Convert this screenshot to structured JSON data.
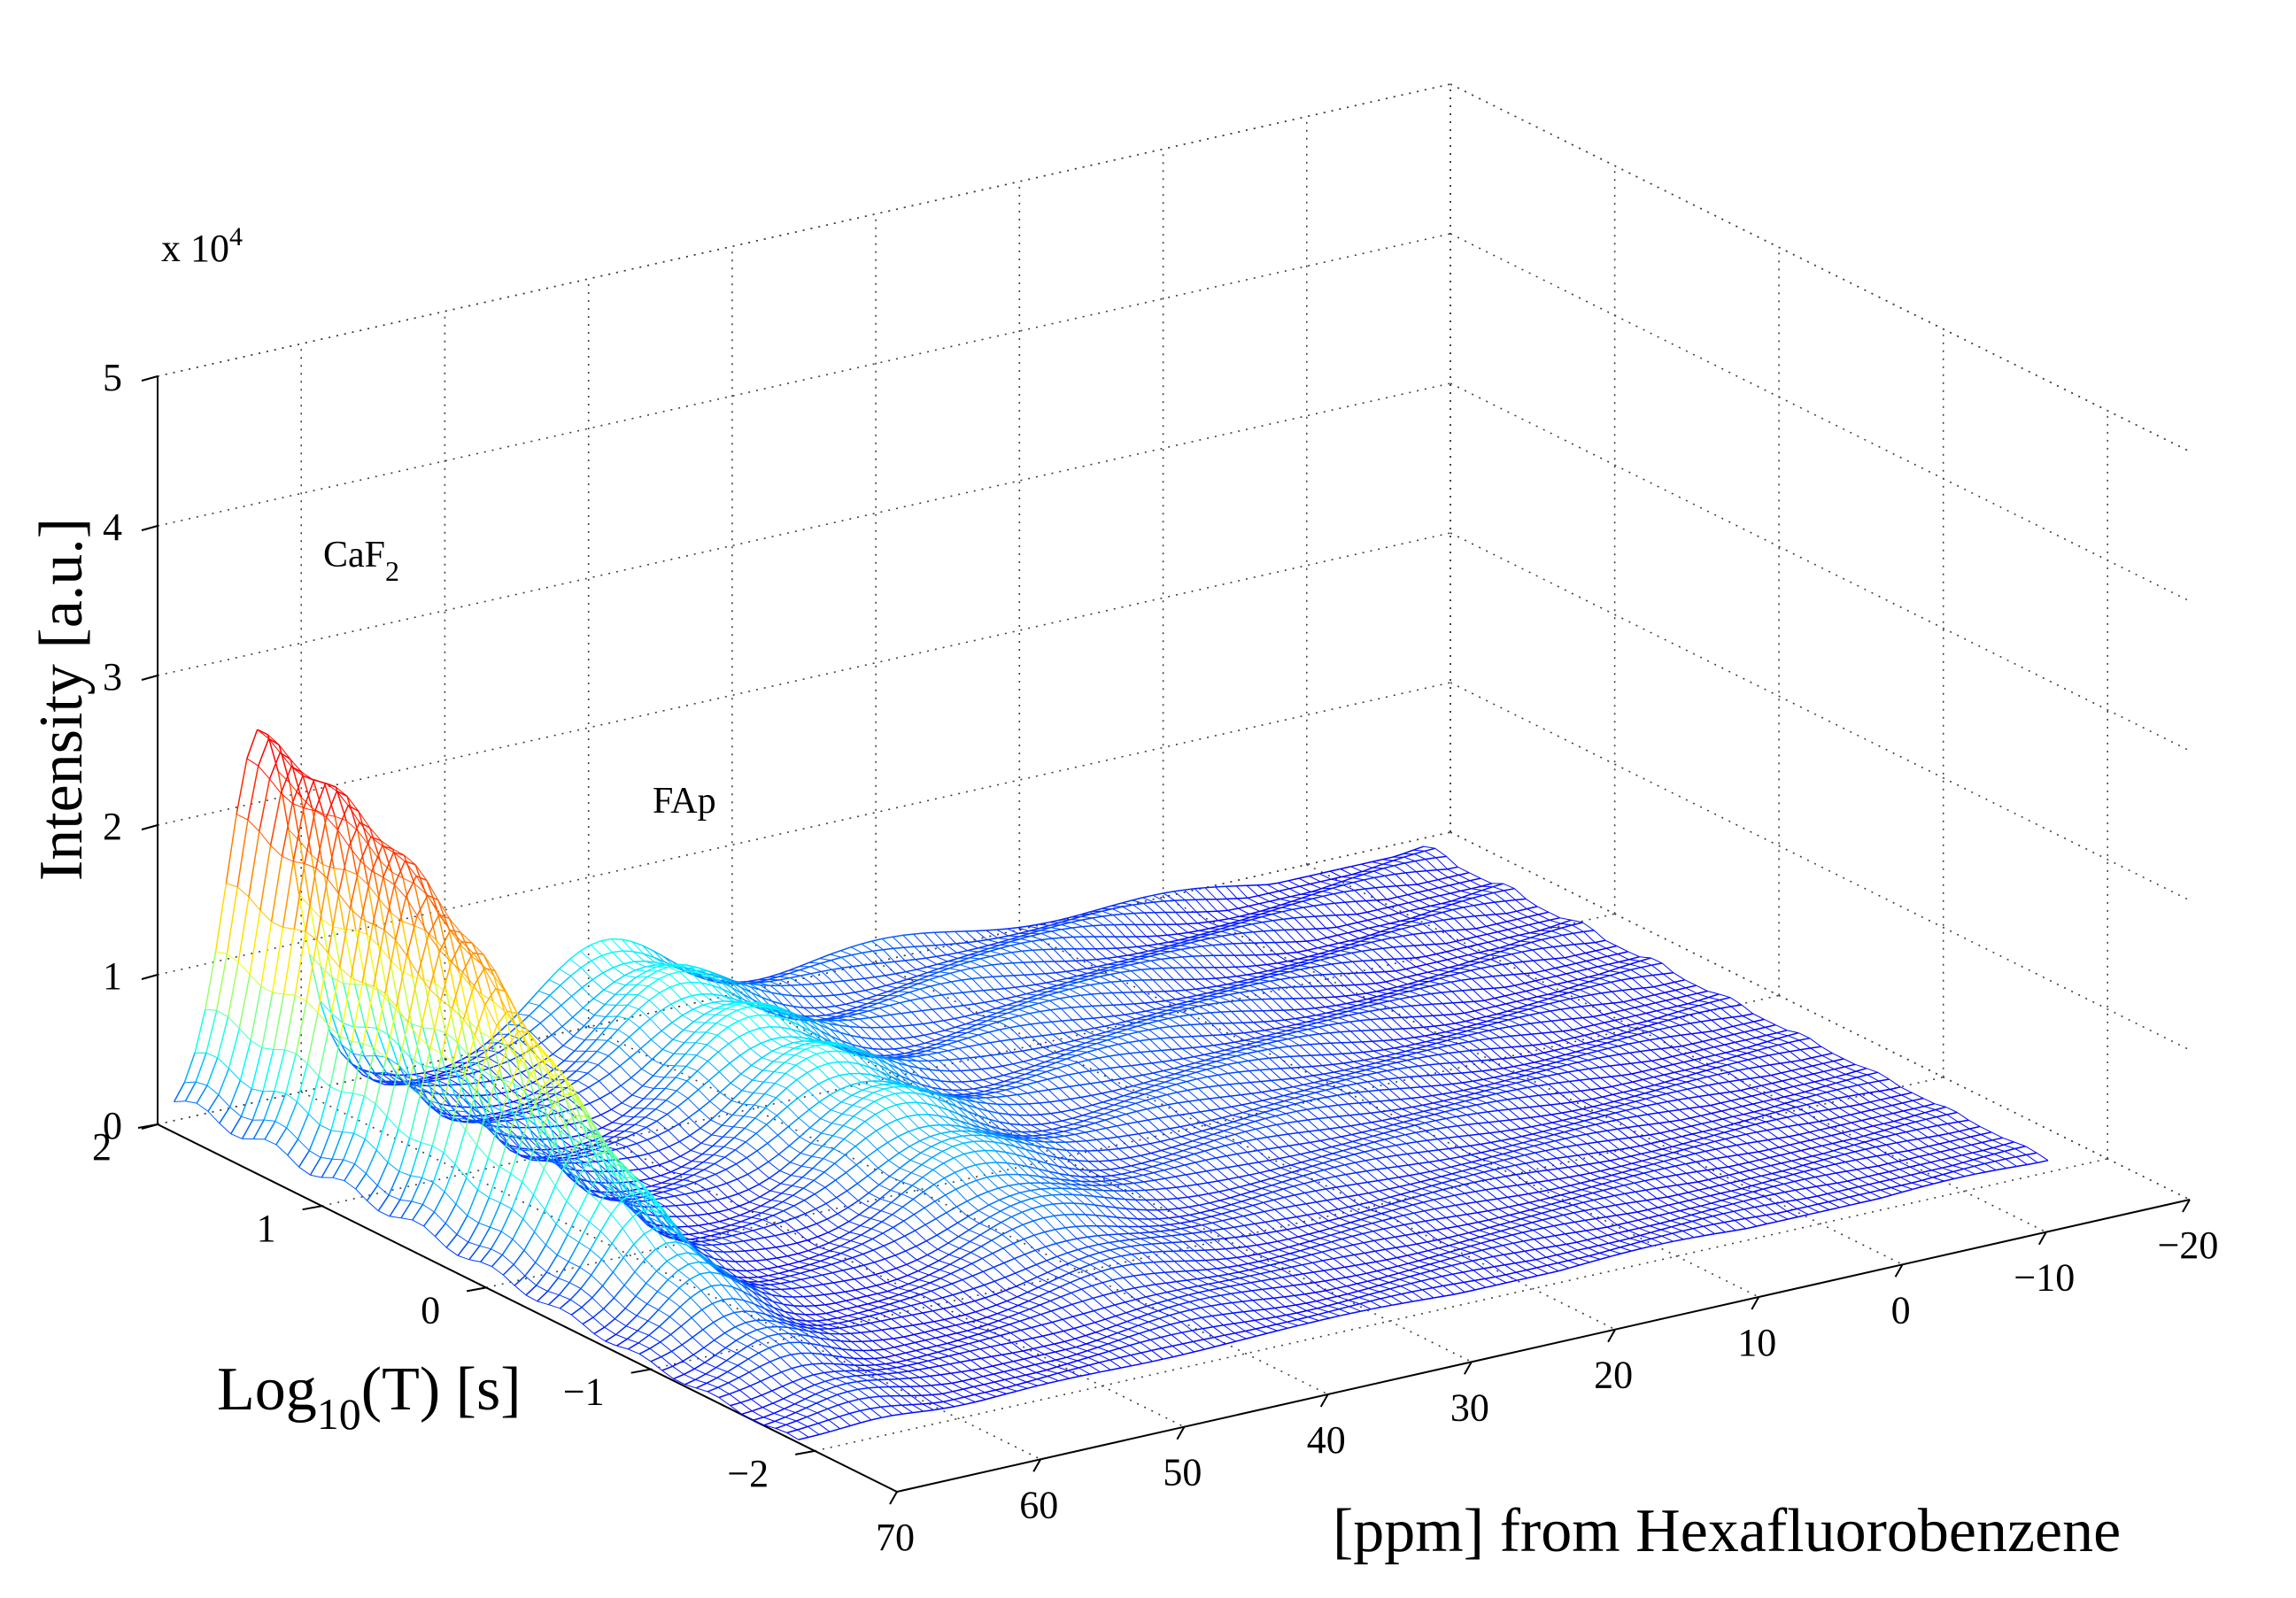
{
  "chart_data": {
    "type": "surface-mesh",
    "xlabel": "[ppm] from Hexafluorobenzene",
    "ylabel_base": "Log",
    "ylabel_sub": "10",
    "ylabel_rest": "(T) [s]",
    "zlabel": "Intensity [a.u.]",
    "z_multiplier_base": "x 10",
    "z_multiplier_exp": "4",
    "xlim": [
      -20,
      70
    ],
    "ylim": [
      -2.5,
      2
    ],
    "zlim": [
      0,
      5
    ],
    "x_ticks": [
      70,
      60,
      50,
      40,
      30,
      20,
      10,
      0,
      -10,
      -20
    ],
    "x_tick_labels": [
      "70",
      "60",
      "50",
      "40",
      "30",
      "20",
      "10",
      "0",
      "−10",
      "−20"
    ],
    "y_ticks": [
      2,
      1,
      0,
      -1,
      -2
    ],
    "y_tick_labels": [
      "2",
      "1",
      "0",
      "−1",
      "−2"
    ],
    "z_ticks": [
      0,
      1,
      2,
      3,
      4,
      5
    ],
    "z_tick_labels": [
      "0",
      "1",
      "2",
      "3",
      "4",
      "5"
    ],
    "grid": true,
    "colormap": [
      "#0000ff",
      "#00ffff",
      "#ffff00",
      "#ff8000",
      "#ff0000"
    ],
    "mesh_x_range": [
      -17,
      70
    ],
    "mesh_y_range": [
      -1.9,
      1.9
    ],
    "peaks": [
      {
        "name": "CaF",
        "name_sub": "2",
        "x": 64,
        "peak_z": 2.4
      },
      {
        "name": "FAp",
        "name_sub": "",
        "x": 40,
        "peak_z": 0.55
      }
    ]
  }
}
